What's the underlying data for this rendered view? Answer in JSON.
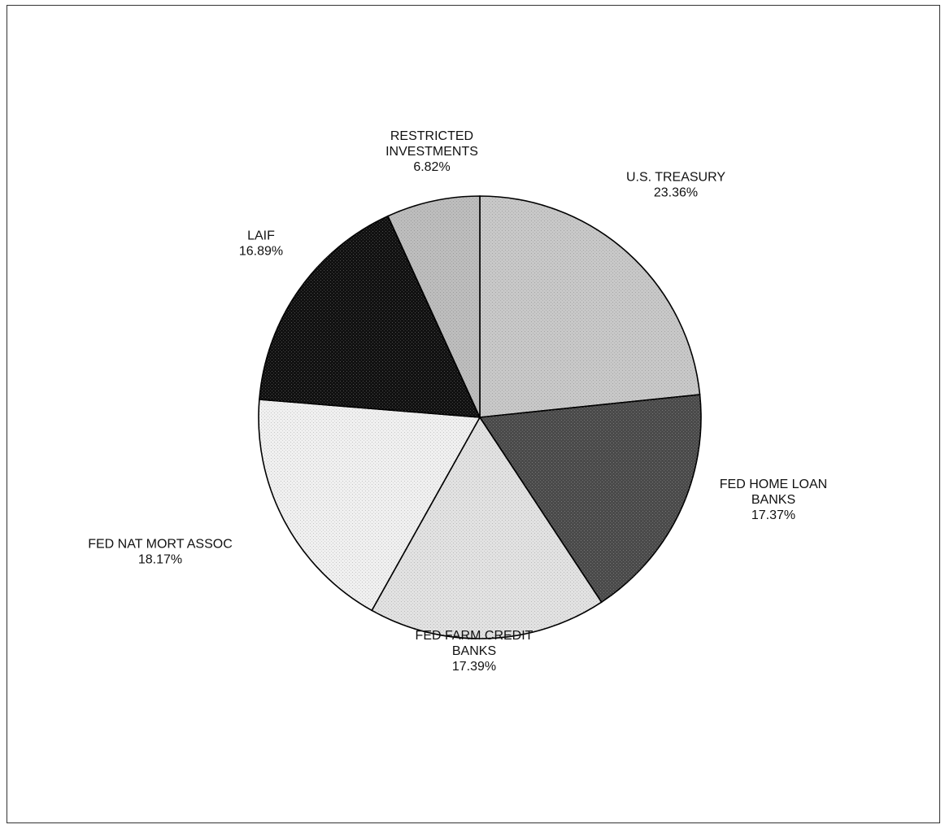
{
  "chart_data": {
    "type": "pie",
    "start_angle_deg": 0,
    "direction": "clockwise",
    "slices": [
      {
        "label_lines": [
          "U.S. TREASURY"
        ],
        "percent_label": "23.36%",
        "value": 23.36,
        "color": "#c8c8c8"
      },
      {
        "label_lines": [
          "FED HOME LOAN",
          "BANKS"
        ],
        "percent_label": "17.37%",
        "value": 17.37,
        "color": "#4a4a4a"
      },
      {
        "label_lines": [
          "FED FARM CREDIT",
          "BANKS"
        ],
        "percent_label": "17.39%",
        "value": 17.39,
        "color": "#e2e2e2"
      },
      {
        "label_lines": [
          "FED NAT MORT ASSOC"
        ],
        "percent_label": "18.17%",
        "value": 18.17,
        "color": "#f0f0f0"
      },
      {
        "label_lines": [
          "LAIF"
        ],
        "percent_label": "16.89%",
        "value": 16.89,
        "color": "#111111"
      },
      {
        "label_lines": [
          "RESTRICTED",
          "INVESTMENTS"
        ],
        "percent_label": "6.82%",
        "value": 6.82,
        "color": "#bdbdbd"
      }
    ]
  }
}
